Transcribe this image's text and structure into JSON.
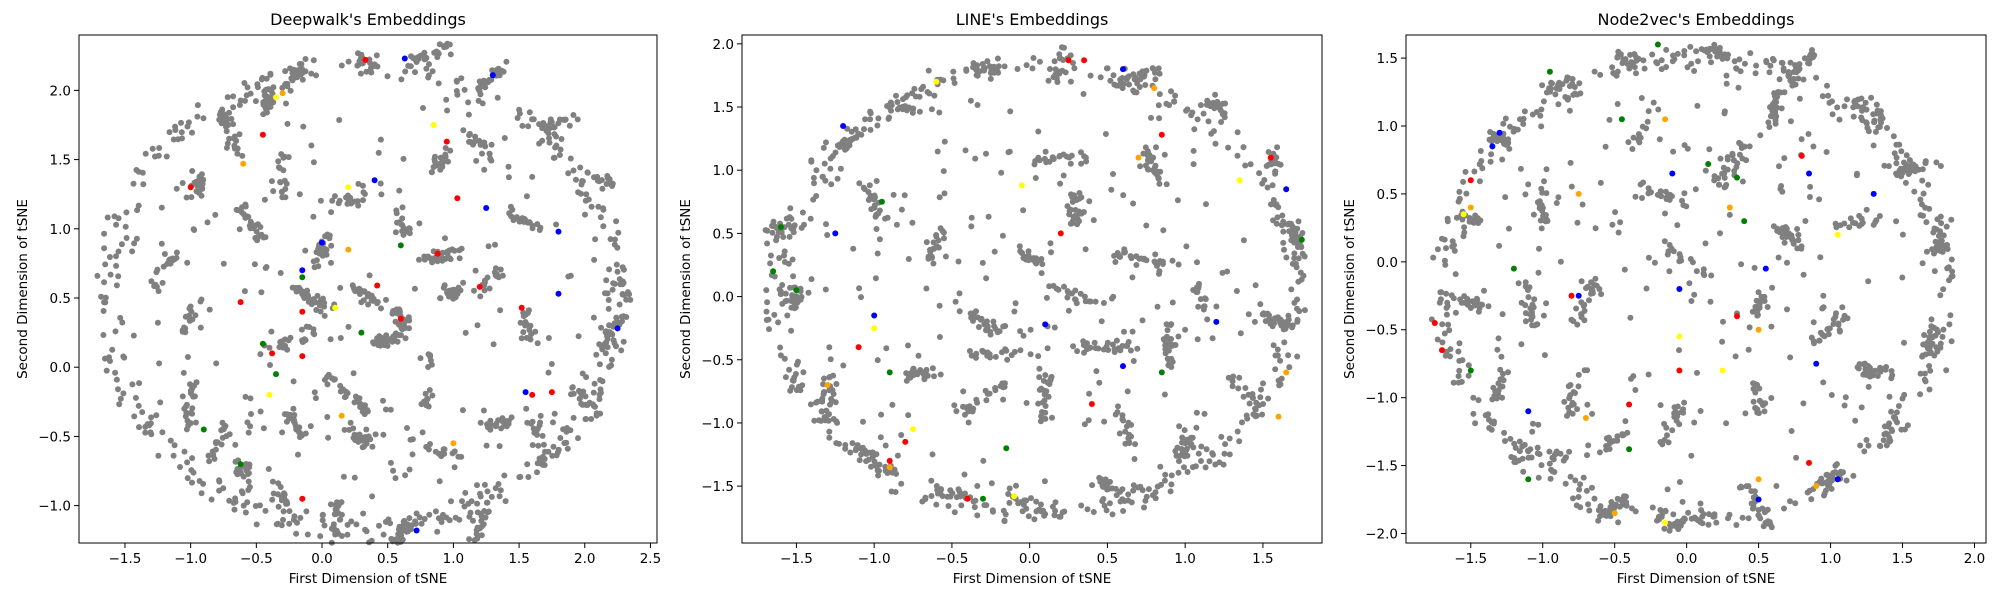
{
  "chart_data": [
    {
      "type": "scatter",
      "title": "Deepwalk's Embeddings",
      "xlabel": "First Dimension of tSNE",
      "ylabel": "Second Dimension of tSNE",
      "xlim": [
        -1.85,
        2.55
      ],
      "ylim": [
        -1.27,
        2.4
      ],
      "xticks": [
        -1.5,
        -1.0,
        -0.5,
        0.0,
        0.5,
        1.0,
        1.5,
        2.0,
        2.5
      ],
      "yticks": [
        -1.0,
        -0.5,
        0.0,
        0.5,
        1.0,
        1.5,
        2.0
      ],
      "layout": "ring",
      "background_color": "#808080",
      "ring": {
        "cx": 0.3,
        "cy": 0.5,
        "rx": 2.0,
        "ry": 1.73
      },
      "clusters": [
        [
          -0.95,
          1.3
        ],
        [
          -1.2,
          0.7
        ],
        [
          -1.0,
          0.35
        ],
        [
          -1.0,
          -0.3
        ],
        [
          -0.8,
          -0.55
        ],
        [
          -0.6,
          -0.75
        ],
        [
          -0.3,
          -0.95
        ],
        [
          0.1,
          -1.15
        ],
        [
          0.6,
          -1.2
        ],
        [
          1.2,
          -1.15
        ],
        [
          1.65,
          -0.55
        ],
        [
          2.0,
          -0.25
        ],
        [
          2.2,
          0.25
        ],
        [
          2.3,
          0.6
        ],
        [
          2.1,
          1.35
        ],
        [
          1.8,
          1.75
        ],
        [
          1.3,
          2.1
        ],
        [
          0.8,
          2.25
        ],
        [
          0.35,
          2.22
        ],
        [
          -0.2,
          2.1
        ],
        [
          -0.4,
          1.95
        ],
        [
          -0.7,
          1.7
        ],
        [
          -0.55,
          1.05
        ],
        [
          -0.3,
          1.4
        ],
        [
          0.0,
          0.85
        ],
        [
          0.2,
          1.2
        ],
        [
          0.35,
          0.5
        ],
        [
          0.6,
          0.35
        ],
        [
          0.9,
          0.8
        ],
        [
          1.0,
          0.55
        ],
        [
          1.25,
          0.6
        ],
        [
          1.55,
          1.05
        ],
        [
          1.55,
          0.3
        ],
        [
          0.8,
          -0.1
        ],
        [
          0.2,
          -0.2
        ],
        [
          -0.2,
          0.2
        ],
        [
          0.5,
          0.2
        ],
        [
          1.2,
          1.6
        ],
        [
          0.9,
          1.5
        ],
        [
          -0.1,
          0.5
        ],
        [
          0.6,
          1.05
        ],
        [
          1.35,
          -0.4
        ],
        [
          0.9,
          -0.6
        ],
        [
          0.3,
          -0.5
        ],
        [
          -0.2,
          -0.4
        ]
      ],
      "colored_points": [
        {
          "color": "#ff0000",
          "points": [
            [
              -1.0,
              1.3
            ],
            [
              -0.45,
              1.68
            ],
            [
              0.33,
              2.22
            ],
            [
              0.95,
              1.63
            ],
            [
              1.03,
              1.22
            ],
            [
              0.88,
              0.82
            ],
            [
              0.42,
              0.59
            ],
            [
              0.6,
              0.35
            ],
            [
              -0.38,
              0.1
            ],
            [
              -0.15,
              0.4
            ],
            [
              -0.62,
              0.47
            ],
            [
              1.2,
              0.58
            ],
            [
              1.52,
              0.43
            ],
            [
              1.6,
              -0.2
            ],
            [
              1.75,
              -0.18
            ],
            [
              -0.15,
              -0.95
            ],
            [
              -0.15,
              0.08
            ]
          ]
        },
        {
          "color": "#0000ff",
          "points": [
            [
              0.63,
              2.23
            ],
            [
              1.3,
              2.11
            ],
            [
              0.4,
              1.35
            ],
            [
              1.25,
              1.15
            ],
            [
              0.0,
              0.9
            ],
            [
              1.8,
              0.98
            ],
            [
              -0.15,
              0.7
            ],
            [
              1.8,
              0.53
            ],
            [
              2.25,
              0.28
            ],
            [
              1.55,
              -0.18
            ],
            [
              0.72,
              -1.18
            ]
          ]
        },
        {
          "color": "#008000",
          "points": [
            [
              -0.45,
              0.17
            ],
            [
              -0.35,
              -0.05
            ],
            [
              -0.9,
              -0.45
            ],
            [
              -0.62,
              -0.7
            ],
            [
              0.6,
              0.88
            ],
            [
              0.3,
              0.25
            ],
            [
              -0.15,
              0.65
            ]
          ]
        },
        {
          "color": "#ffa500",
          "points": [
            [
              -0.6,
              1.47
            ],
            [
              -0.3,
              1.98
            ],
            [
              0.2,
              0.85
            ],
            [
              0.15,
              -0.35
            ],
            [
              1.0,
              -0.55
            ]
          ]
        },
        {
          "color": "#ffff00",
          "points": [
            [
              -0.35,
              1.95
            ],
            [
              0.2,
              1.3
            ],
            [
              0.85,
              1.75
            ],
            [
              -0.4,
              -0.2
            ],
            [
              0.1,
              0.43
            ]
          ]
        }
      ]
    },
    {
      "type": "scatter",
      "title": "LINE's Embeddings",
      "xlabel": "First Dimension of tSNE",
      "ylabel": "Second Dimension of tSNE",
      "xlim": [
        -1.85,
        1.88
      ],
      "ylim": [
        -1.95,
        2.07
      ],
      "xticks": [
        -1.5,
        -1.0,
        -0.5,
        0.0,
        0.5,
        1.0,
        1.5
      ],
      "yticks": [
        -1.5,
        -1.0,
        -0.5,
        0.0,
        0.5,
        1.0,
        1.5,
        2.0
      ],
      "layout": "ring",
      "background_color": "#808080",
      "ring": {
        "cx": 0.05,
        "cy": 0.05,
        "rx": 1.72,
        "ry": 1.83
      },
      "clusters": [
        [
          -1.6,
          0.55
        ],
        [
          -1.5,
          0.0
        ],
        [
          -1.3,
          -0.8
        ],
        [
          -1.0,
          -1.3
        ],
        [
          -0.5,
          -1.55
        ],
        [
          0.0,
          -1.65
        ],
        [
          0.5,
          -1.5
        ],
        [
          1.0,
          -1.2
        ],
        [
          1.4,
          -0.8
        ],
        [
          1.6,
          -0.2
        ],
        [
          1.7,
          0.5
        ],
        [
          1.55,
          1.1
        ],
        [
          1.2,
          1.5
        ],
        [
          0.7,
          1.75
        ],
        [
          0.2,
          1.85
        ],
        [
          -0.3,
          1.8
        ],
        [
          -0.8,
          1.5
        ],
        [
          -1.2,
          1.2
        ],
        [
          -1.0,
          0.75
        ],
        [
          -0.6,
          0.4
        ],
        [
          -0.3,
          -0.2
        ],
        [
          0.0,
          0.3
        ],
        [
          0.3,
          0.7
        ],
        [
          0.7,
          0.3
        ],
        [
          0.9,
          -0.4
        ],
        [
          0.5,
          -0.4
        ],
        [
          0.1,
          -0.8
        ],
        [
          -0.3,
          -0.8
        ],
        [
          -0.7,
          -0.6
        ],
        [
          0.2,
          1.1
        ],
        [
          0.8,
          1.0
        ],
        [
          1.1,
          0.0
        ],
        [
          0.6,
          -1.0
        ],
        [
          -0.2,
          -0.45
        ],
        [
          0.3,
          0.0
        ]
      ],
      "colored_points": [
        {
          "color": "#ff0000",
          "points": [
            [
              0.25,
              1.87
            ],
            [
              0.35,
              1.87
            ],
            [
              0.85,
              1.28
            ],
            [
              1.55,
              1.1
            ],
            [
              0.2,
              0.5
            ],
            [
              -1.1,
              -0.4
            ],
            [
              0.4,
              -0.85
            ],
            [
              -0.9,
              -1.3
            ],
            [
              -0.8,
              -1.15
            ],
            [
              -0.4,
              -1.6
            ]
          ]
        },
        {
          "color": "#0000ff",
          "points": [
            [
              0.6,
              1.8
            ],
            [
              -1.2,
              1.35
            ],
            [
              -1.25,
              0.5
            ],
            [
              1.65,
              0.85
            ],
            [
              -1.0,
              -0.15
            ],
            [
              0.1,
              -0.22
            ],
            [
              0.6,
              -0.55
            ],
            [
              1.2,
              -0.2
            ]
          ]
        },
        {
          "color": "#008000",
          "points": [
            [
              -0.95,
              0.75
            ],
            [
              -1.6,
              0.55
            ],
            [
              -1.65,
              0.2
            ],
            [
              -1.5,
              0.05
            ],
            [
              -0.9,
              -0.6
            ],
            [
              -0.3,
              -1.6
            ],
            [
              -0.15,
              -1.2
            ],
            [
              0.85,
              -0.6
            ],
            [
              1.75,
              0.45
            ]
          ]
        },
        {
          "color": "#ffa500",
          "points": [
            [
              0.8,
              1.65
            ],
            [
              -1.3,
              -0.7
            ],
            [
              -0.9,
              -1.35
            ],
            [
              1.65,
              -0.6
            ],
            [
              1.6,
              -0.95
            ],
            [
              0.7,
              1.1
            ]
          ]
        },
        {
          "color": "#ffff00",
          "points": [
            [
              -0.6,
              1.7
            ],
            [
              1.35,
              0.92
            ],
            [
              -0.05,
              0.88
            ],
            [
              -1.0,
              -0.25
            ],
            [
              -0.75,
              -1.05
            ],
            [
              -0.1,
              -1.58
            ]
          ]
        }
      ]
    },
    {
      "type": "scatter",
      "title": "Node2vec's Embeddings",
      "xlabel": "First Dimension of tSNE",
      "ylabel": "Second Dimension of tSNE",
      "xlim": [
        -1.95,
        2.08
      ],
      "ylim": [
        -2.07,
        1.67
      ],
      "xticks": [
        -1.5,
        -1.0,
        -0.5,
        0.0,
        0.5,
        1.0,
        1.5,
        2.0
      ],
      "yticks": [
        -2.0,
        -1.5,
        -1.0,
        -0.5,
        0.0,
        0.5,
        1.0,
        1.5
      ],
      "layout": "ring",
      "background_color": "#808080",
      "ring": {
        "cx": 0.05,
        "cy": -0.2,
        "rx": 1.8,
        "ry": 1.75
      },
      "clusters": [
        [
          -1.5,
          0.3
        ],
        [
          -1.55,
          -0.3
        ],
        [
          -1.3,
          -0.9
        ],
        [
          -1.0,
          -1.4
        ],
        [
          -0.5,
          -1.8
        ],
        [
          0.0,
          -1.9
        ],
        [
          0.5,
          -1.8
        ],
        [
          1.0,
          -1.6
        ],
        [
          1.4,
          -1.2
        ],
        [
          1.7,
          -0.6
        ],
        [
          1.75,
          0.1
        ],
        [
          1.6,
          0.7
        ],
        [
          1.3,
          1.1
        ],
        [
          0.8,
          1.45
        ],
        [
          0.2,
          1.55
        ],
        [
          -0.4,
          1.5
        ],
        [
          -0.9,
          1.3
        ],
        [
          -1.3,
          0.9
        ],
        [
          -1.0,
          0.4
        ],
        [
          -0.7,
          -0.3
        ],
        [
          -0.5,
          -1.3
        ],
        [
          -0.2,
          0.5
        ],
        [
          0.3,
          0.7
        ],
        [
          0.7,
          0.2
        ],
        [
          1.0,
          -0.5
        ],
        [
          0.5,
          -1.0
        ],
        [
          -0.1,
          -1.2
        ],
        [
          -0.8,
          -1.0
        ],
        [
          -1.1,
          -0.3
        ],
        [
          0.0,
          0.0
        ],
        [
          0.5,
          -0.3
        ],
        [
          1.2,
          0.3
        ],
        [
          1.3,
          -0.8
        ],
        [
          -0.3,
          1.0
        ],
        [
          0.6,
          1.1
        ]
      ],
      "colored_points": [
        {
          "color": "#ff0000",
          "points": [
            [
              -1.5,
              0.6
            ],
            [
              -0.8,
              -0.25
            ],
            [
              -1.75,
              -0.45
            ],
            [
              -1.7,
              -0.65
            ],
            [
              -0.4,
              -1.05
            ],
            [
              0.8,
              0.78
            ],
            [
              0.85,
              -1.48
            ],
            [
              -0.05,
              -0.8
            ],
            [
              0.35,
              -0.4
            ]
          ]
        },
        {
          "color": "#0000ff",
          "points": [
            [
              -1.35,
              0.85
            ],
            [
              -1.3,
              0.95
            ],
            [
              0.85,
              0.65
            ],
            [
              1.3,
              0.5
            ],
            [
              -0.1,
              0.65
            ],
            [
              -0.05,
              -0.2
            ],
            [
              0.55,
              -0.05
            ],
            [
              -0.75,
              -0.25
            ],
            [
              -1.1,
              -1.1
            ],
            [
              0.9,
              -0.75
            ],
            [
              1.05,
              -1.6
            ],
            [
              0.5,
              -1.75
            ]
          ]
        },
        {
          "color": "#008000",
          "points": [
            [
              -0.95,
              1.4
            ],
            [
              -0.2,
              1.6
            ],
            [
              -0.45,
              1.05
            ],
            [
              0.15,
              0.72
            ],
            [
              0.35,
              0.62
            ],
            [
              0.4,
              0.3
            ],
            [
              -1.2,
              -0.05
            ],
            [
              -1.5,
              -0.8
            ],
            [
              -1.1,
              -1.6
            ],
            [
              -0.4,
              -1.38
            ]
          ]
        },
        {
          "color": "#ffa500",
          "points": [
            [
              -0.15,
              1.05
            ],
            [
              -0.75,
              0.5
            ],
            [
              -1.5,
              0.4
            ],
            [
              0.3,
              0.4
            ],
            [
              0.5,
              -0.5
            ],
            [
              -0.7,
              -1.15
            ],
            [
              0.5,
              -1.6
            ],
            [
              0.9,
              -1.65
            ],
            [
              -0.5,
              -1.85
            ]
          ]
        },
        {
          "color": "#ffff00",
          "points": [
            [
              -1.55,
              0.35
            ],
            [
              1.05,
              0.2
            ],
            [
              -0.05,
              -0.55
            ],
            [
              0.25,
              -0.8
            ],
            [
              -0.15,
              -1.92
            ]
          ]
        }
      ]
    }
  ]
}
